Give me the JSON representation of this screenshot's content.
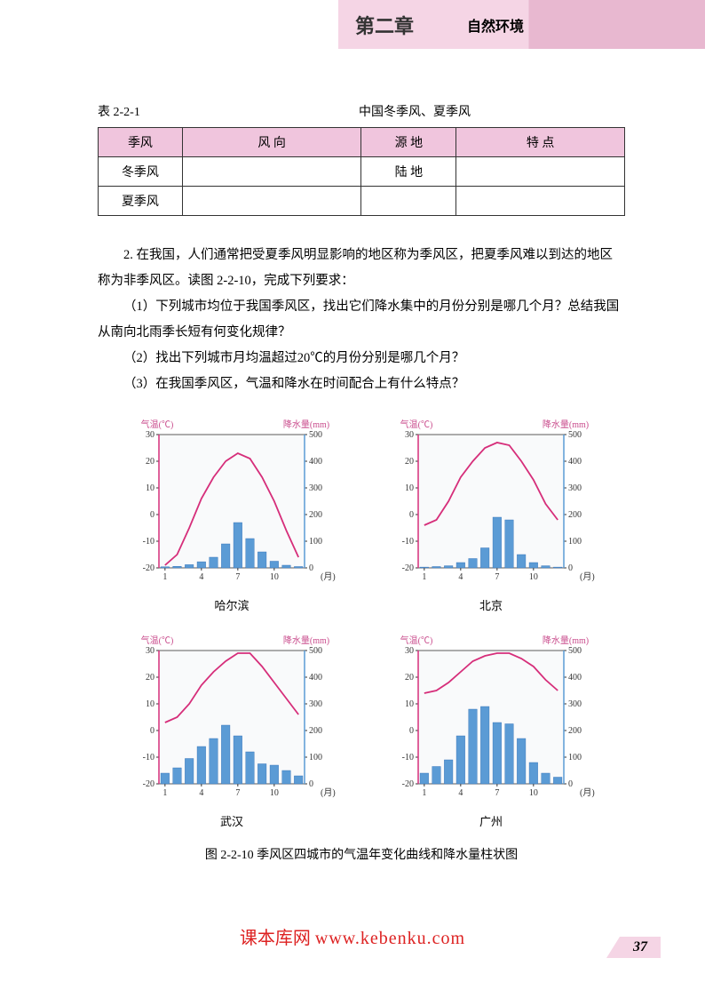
{
  "header": {
    "chapter": "第二章",
    "section": "自然环境"
  },
  "table": {
    "label": "表 2-2-1",
    "title": "中国冬季风、夏季风",
    "columns": [
      "季风",
      "风 向",
      "源 地",
      "特 点"
    ],
    "rows": [
      [
        "冬季风",
        "",
        "陆 地",
        ""
      ],
      [
        "夏季风",
        "",
        "",
        ""
      ]
    ]
  },
  "text": {
    "p1": "2. 在我国，人们通常把受夏季风明显影响的地区称为季风区，把夏季风难以到达的地区称为非季风区。读图 2-2-10，完成下列要求：",
    "p2": "（1）下列城市均位于我国季风区，找出它们降水集中的月份分别是哪几个月？总结我国从南向北雨季长短有何变化规律？",
    "p3": "（2）找出下列城市月均温超过20℃的月份分别是哪几个月？",
    "p4": "（3）在我国季风区，气温和降水在时间配合上有什么特点？"
  },
  "chartCommon": {
    "tempLabel": "气温(℃)",
    "precipLabel": "降水量(mm)",
    "monthLabel": "(月)",
    "tempRange": [
      -20,
      30
    ],
    "tempTicks": [
      -20,
      -10,
      0,
      10,
      20,
      30
    ],
    "precipRange": [
      0,
      500
    ],
    "precipTicks": [
      0,
      100,
      200,
      300,
      400,
      500
    ],
    "xTicks": [
      1,
      4,
      7,
      10
    ],
    "months": [
      1,
      2,
      3,
      4,
      5,
      6,
      7,
      8,
      9,
      10,
      11,
      12
    ],
    "style": {
      "tempColor": "#d62e7a",
      "barColor": "#5b9bd5",
      "barBorder": "#2e6cb5",
      "axisColor": "#333",
      "gridColor": "#aaa",
      "bgColor": "#f9fafb",
      "labelColor": "#c94b8c",
      "fontSize": 10,
      "lineWidth": 1.8,
      "barWidthRatio": 0.7
    }
  },
  "cities": [
    {
      "name": "哈尔滨",
      "temp": [
        -19,
        -15,
        -5,
        6,
        14,
        20,
        23,
        21,
        14,
        5,
        -6,
        -16
      ],
      "precip": [
        4,
        6,
        12,
        23,
        40,
        90,
        170,
        110,
        60,
        25,
        10,
        5
      ]
    },
    {
      "name": "北京",
      "temp": [
        -4,
        -2,
        5,
        14,
        20,
        25,
        27,
        26,
        20,
        13,
        4,
        -2
      ],
      "precip": [
        3,
        5,
        8,
        20,
        35,
        75,
        190,
        180,
        50,
        20,
        8,
        3
      ]
    },
    {
      "name": "武汉",
      "temp": [
        3,
        5,
        10,
        17,
        22,
        26,
        29,
        29,
        24,
        18,
        12,
        6
      ],
      "precip": [
        40,
        60,
        95,
        140,
        170,
        220,
        180,
        120,
        75,
        70,
        50,
        30
      ]
    },
    {
      "name": "广州",
      "temp": [
        14,
        15,
        18,
        22,
        26,
        28,
        29,
        29,
        27,
        24,
        19,
        15
      ],
      "precip": [
        40,
        65,
        90,
        180,
        280,
        290,
        230,
        225,
        170,
        80,
        40,
        25
      ]
    }
  ],
  "figureCaption": "图 2-2-10  季风区四城市的气温年变化曲线和降水量柱状图",
  "watermark": {
    "cn": "课本库网",
    "en": "www.kebenku.com"
  },
  "pageNumber": "37"
}
